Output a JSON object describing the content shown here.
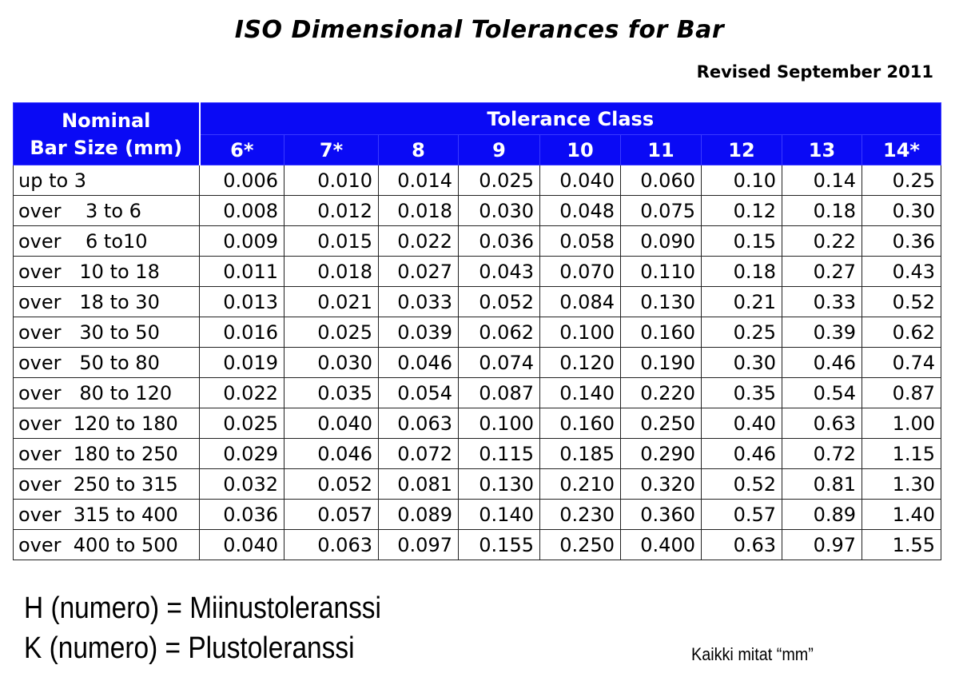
{
  "title": "ISO Dimensional Tolerances for Bar",
  "revised": "Revised September 2011",
  "table": {
    "header_nominal": "Nominal\nBar Size (mm)",
    "header_group": "Tolerance Class",
    "classes": [
      "6*",
      "7*",
      "8",
      "9",
      "10",
      "11",
      "12",
      "13",
      "14*"
    ],
    "rows": [
      {
        "size": "up to 3",
        "values": [
          "0.006",
          "0.010",
          "0.014",
          "0.025",
          "0.040",
          "0.060",
          "0.10",
          "0.14",
          "0.25"
        ]
      },
      {
        "size": "over    3 to 6",
        "values": [
          "0.008",
          "0.012",
          "0.018",
          "0.030",
          "0.048",
          "0.075",
          "0.12",
          "0.18",
          "0.30"
        ]
      },
      {
        "size": "over    6 to10",
        "values": [
          "0.009",
          "0.015",
          "0.022",
          "0.036",
          "0.058",
          "0.090",
          "0.15",
          "0.22",
          "0.36"
        ]
      },
      {
        "size": "over   10 to 18",
        "values": [
          "0.011",
          "0.018",
          "0.027",
          "0.043",
          "0.070",
          "0.110",
          "0.18",
          "0.27",
          "0.43"
        ]
      },
      {
        "size": "over   18 to 30",
        "values": [
          "0.013",
          "0.021",
          "0.033",
          "0.052",
          "0.084",
          "0.130",
          "0.21",
          "0.33",
          "0.52"
        ]
      },
      {
        "size": "over   30 to 50",
        "values": [
          "0.016",
          "0.025",
          "0.039",
          "0.062",
          "0.100",
          "0.160",
          "0.25",
          "0.39",
          "0.62"
        ]
      },
      {
        "size": "over   50 to 80",
        "values": [
          "0.019",
          "0.030",
          "0.046",
          "0.074",
          "0.120",
          "0.190",
          "0.30",
          "0.46",
          "0.74"
        ]
      },
      {
        "size": "over   80 to 120",
        "values": [
          "0.022",
          "0.035",
          "0.054",
          "0.087",
          "0.140",
          "0.220",
          "0.35",
          "0.54",
          "0.87"
        ]
      },
      {
        "size": "over  120 to 180",
        "values": [
          "0.025",
          "0.040",
          "0.063",
          "0.100",
          "0.160",
          "0.250",
          "0.40",
          "0.63",
          "1.00"
        ]
      },
      {
        "size": "over  180 to 250",
        "values": [
          "0.029",
          "0.046",
          "0.072",
          "0.115",
          "0.185",
          "0.290",
          "0.46",
          "0.72",
          "1.15"
        ]
      },
      {
        "size": "over  250 to 315",
        "values": [
          "0.032",
          "0.052",
          "0.081",
          "0.130",
          "0.210",
          "0.320",
          "0.52",
          "0.81",
          "1.30"
        ]
      },
      {
        "size": "over  315 to 400",
        "values": [
          "0.036",
          "0.057",
          "0.089",
          "0.140",
          "0.230",
          "0.360",
          "0.57",
          "0.89",
          "1.40"
        ]
      },
      {
        "size": "over  400 to 500",
        "values": [
          "0.040",
          "0.063",
          "0.097",
          "0.155",
          "0.250",
          "0.400",
          "0.63",
          "0.97",
          "1.55"
        ]
      }
    ]
  },
  "notes": {
    "h": "H (numero) = Miinustoleranssi",
    "k": "K (numero) = Plustoleranssi",
    "units": "Kaikki mitat “mm”"
  },
  "colors": {
    "header_bg": "#0a0af5",
    "header_text": "#ffffff"
  }
}
